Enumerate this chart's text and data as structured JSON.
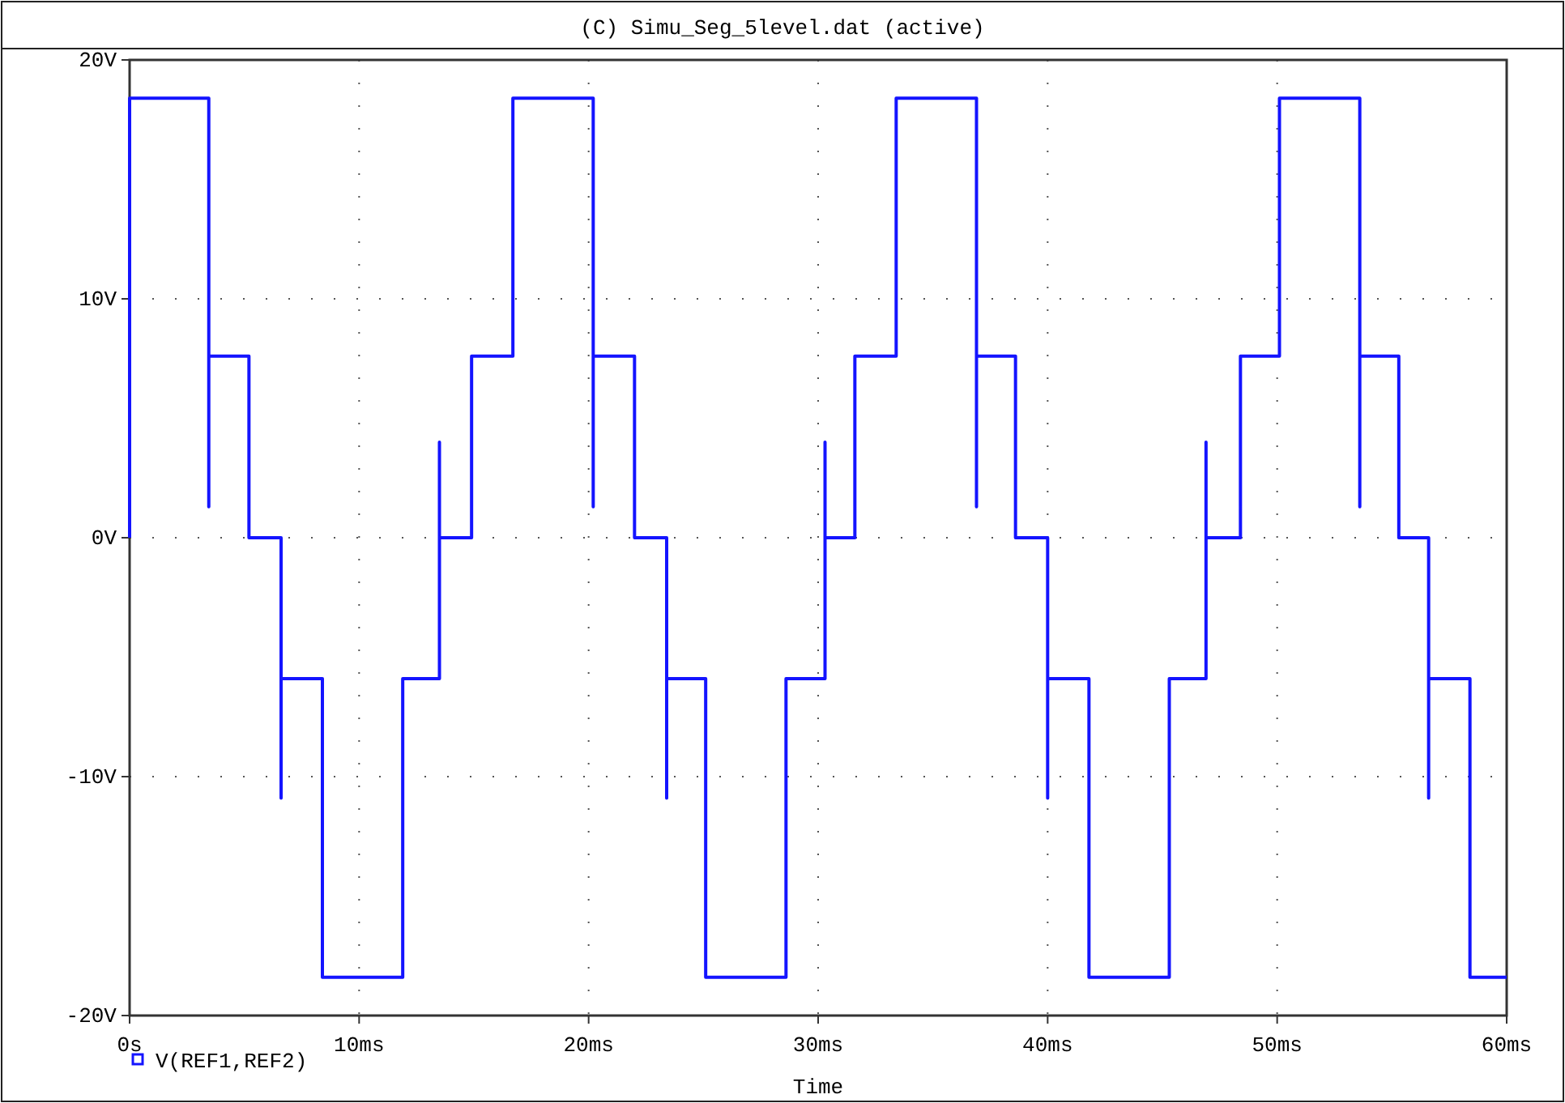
{
  "chart_data": {
    "type": "step",
    "title": "(C) Simu_Seg_5level.dat (active)",
    "xlabel": "Time",
    "xlim": [
      0,
      60
    ],
    "ylim": [
      -20,
      20
    ],
    "xticks": [
      {
        "value": 0,
        "label": "0s"
      },
      {
        "value": 10,
        "label": "10ms"
      },
      {
        "value": 20,
        "label": "20ms"
      },
      {
        "value": 30,
        "label": "30ms"
      },
      {
        "value": 40,
        "label": "40ms"
      },
      {
        "value": 50,
        "label": "50ms"
      },
      {
        "value": 60,
        "label": "60ms"
      }
    ],
    "yticks": [
      {
        "value": -20,
        "label": "-20V"
      },
      {
        "value": -10,
        "label": "-10V"
      },
      {
        "value": 0,
        "label": "0V"
      },
      {
        "value": 10,
        "label": "10V"
      },
      {
        "value": 20,
        "label": "20V"
      }
    ],
    "grid": true,
    "legend": "bottom left",
    "series": [
      {
        "name": "V(REF1,REF2)",
        "color": "#1414ff",
        "x": [
          0,
          0,
          3.45,
          3.45,
          3.45,
          5.2,
          6.6,
          6.6,
          8.4,
          11.9,
          13.5,
          13.5,
          14.9,
          16.7,
          20.2,
          20.2,
          20.2,
          22.0,
          23.4,
          23.4,
          25.1,
          28.6,
          30.3,
          30.3,
          31.6,
          33.4,
          36.9,
          36.9,
          36.9,
          38.6,
          40.0,
          40.0,
          41.8,
          45.3,
          46.9,
          46.9,
          48.4,
          50.1,
          53.6,
          53.6,
          53.6,
          55.3,
          56.6,
          56.6,
          58.4,
          60
        ],
        "values": [
          0,
          18.4,
          18.4,
          1.3,
          7.6,
          0,
          -10.9,
          -5.9,
          -18.4,
          -5.9,
          4.0,
          0,
          7.6,
          18.4,
          18.4,
          1.3,
          7.6,
          0,
          -10.9,
          -5.9,
          -18.4,
          -5.9,
          4.0,
          0,
          7.6,
          18.4,
          18.4,
          1.3,
          7.6,
          0,
          -10.9,
          -5.9,
          -18.4,
          -5.9,
          4.0,
          0,
          7.6,
          18.4,
          18.4,
          1.3,
          7.6,
          0,
          -10.9,
          -5.9,
          -18.4,
          -18.4
        ]
      }
    ]
  }
}
